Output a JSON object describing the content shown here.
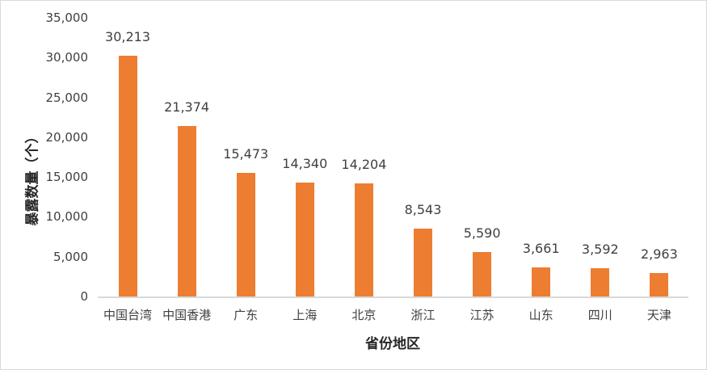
{
  "chart_data": {
    "type": "bar",
    "title": "",
    "xlabel": "省份地区",
    "ylabel": "暴露数量（个）",
    "categories": [
      "中国台湾",
      "中国香港",
      "广东",
      "上海",
      "北京",
      "浙江",
      "江苏",
      "山东",
      "四川",
      "天津"
    ],
    "values": [
      30213,
      21374,
      15473,
      14340,
      14204,
      8543,
      5590,
      3661,
      3592,
      2963
    ],
    "value_labels": [
      "30,213",
      "21,374",
      "15,473",
      "14,340",
      "14,204",
      "8,543",
      "5,590",
      "3,661",
      "3,592",
      "2,963"
    ],
    "ylim": [
      0,
      35000
    ],
    "yticks": [
      "0",
      "5,000",
      "10,000",
      "15,000",
      "20,000",
      "25,000",
      "30,000",
      "35,000"
    ],
    "grid": false,
    "legend": null,
    "bar_color": "#ED7D31"
  }
}
